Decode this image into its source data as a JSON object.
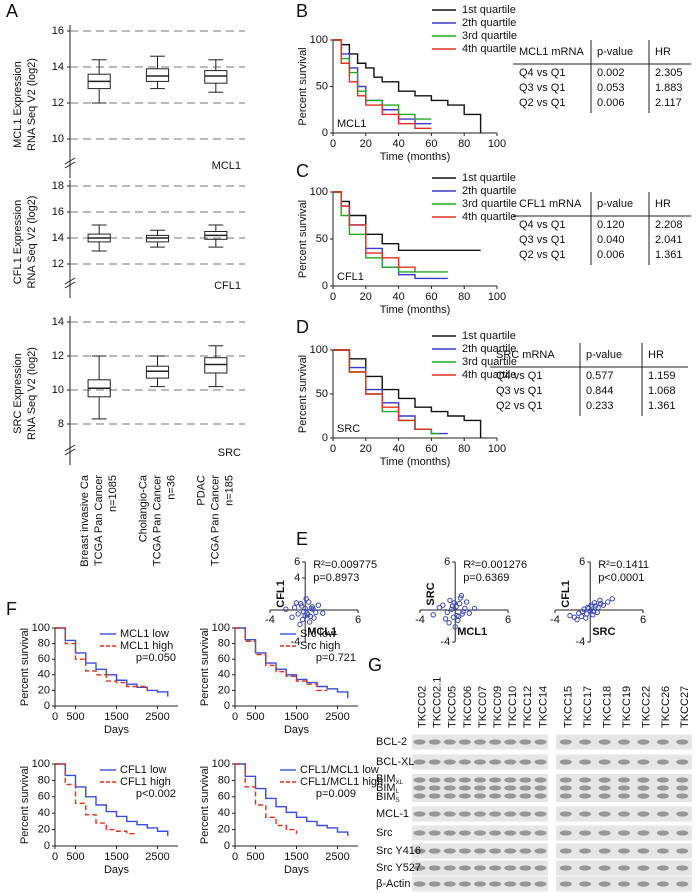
{
  "panel_letters": [
    "A",
    "B",
    "C",
    "D",
    "E",
    "F",
    "G"
  ],
  "chart_data": [
    {
      "type": "box",
      "ylabel": [
        "MCL1 Expression",
        "RNA Seq V2 (log2)"
      ],
      "label": "MCL1",
      "ylim": [
        10,
        16
      ],
      "yticks": [
        10,
        12,
        14,
        16
      ],
      "grid": "dashed",
      "boxes": [
        {
          "whislo": 12,
          "q1": 12.8,
          "med": 13.2,
          "q3": 13.6,
          "whishi": 14.4
        },
        {
          "whislo": 12.8,
          "q1": 13.2,
          "med": 13.5,
          "q3": 13.9,
          "whishi": 14.6
        },
        {
          "whislo": 12.6,
          "q1": 13.1,
          "med": 13.5,
          "q3": 13.8,
          "whishi": 14.4
        }
      ]
    },
    {
      "type": "box",
      "ylabel": [
        "CFL1 Expression",
        "RNA Seq V2 (log2)"
      ],
      "label": "CFL1",
      "ylim": [
        12,
        18
      ],
      "yticks": [
        12,
        14,
        16,
        18
      ],
      "grid": "dashed",
      "boxes": [
        {
          "whislo": 13,
          "q1": 13.7,
          "med": 14,
          "q3": 14.3,
          "whishi": 15
        },
        {
          "whislo": 13.3,
          "q1": 13.7,
          "med": 14,
          "q3": 14.2,
          "whishi": 14.6
        },
        {
          "whislo": 13.3,
          "q1": 13.9,
          "med": 14.2,
          "q3": 14.5,
          "whishi": 15
        }
      ]
    },
    {
      "type": "box",
      "ylabel": [
        "SRC Expression",
        "RNA Seq V2 (log2)"
      ],
      "label": "SRC",
      "ylim": [
        8,
        14
      ],
      "yticks": [
        8,
        10,
        12,
        14
      ],
      "grid": "dashed",
      "boxes": [
        {
          "whislo": 8.3,
          "q1": 9.6,
          "med": 10.1,
          "q3": 10.6,
          "whishi": 12
        },
        {
          "whislo": 10.2,
          "q1": 10.7,
          "med": 11.1,
          "q3": 11.4,
          "whishi": 12
        },
        {
          "whislo": 10.2,
          "q1": 11,
          "med": 11.5,
          "q3": 11.9,
          "whishi": 12.6
        }
      ],
      "category_lines": [
        [
          "Breast invasive Ca",
          "TCGA Pan Cancer",
          "n=1085"
        ],
        [
          "Cholangio-Ca",
          "TCGA Pan Cancer",
          "n=36"
        ],
        [
          "PDAC",
          "TCGA Pan Cancer",
          "n=185"
        ]
      ]
    },
    {
      "type": "step",
      "ylabel": "Percent survival",
      "xlabel": "Time (months)",
      "label": "MCL1",
      "xlim": [
        0,
        100
      ],
      "xticks": [
        0,
        20,
        40,
        60,
        80,
        100
      ],
      "ylim": [
        0,
        100
      ],
      "yticks": [
        0,
        50,
        100
      ],
      "series": [
        {
          "name": "1st quartile",
          "color": "#111111",
          "x": [
            0,
            5,
            10,
            15,
            20,
            25,
            30,
            40,
            50,
            60,
            70,
            80,
            90
          ],
          "values": [
            100,
            95,
            85,
            75,
            70,
            60,
            55,
            45,
            40,
            35,
            30,
            20,
            0
          ]
        },
        {
          "name": "2th quartile",
          "color": "#3a3acc",
          "x": [
            0,
            5,
            10,
            15,
            20,
            30,
            40,
            50,
            60
          ],
          "values": [
            100,
            85,
            70,
            50,
            35,
            25,
            15,
            10,
            10
          ]
        },
        {
          "name": "3rd quartile",
          "color": "#22aa22",
          "x": [
            0,
            5,
            10,
            15,
            20,
            30,
            40,
            50,
            60
          ],
          "values": [
            100,
            80,
            65,
            45,
            35,
            30,
            20,
            15,
            15
          ]
        },
        {
          "name": "4th quartile",
          "color": "#e03020",
          "x": [
            0,
            5,
            10,
            15,
            20,
            30,
            40,
            50,
            60
          ],
          "values": [
            100,
            75,
            55,
            40,
            30,
            20,
            10,
            5,
            5
          ]
        }
      ]
    },
    {
      "type": "step",
      "ylabel": "Percent survival",
      "xlabel": "Time (months)",
      "label": "CFL1",
      "xlim": [
        0,
        100
      ],
      "xticks": [
        0,
        20,
        40,
        60,
        80,
        100
      ],
      "ylim": [
        0,
        100
      ],
      "yticks": [
        0,
        50,
        100
      ],
      "series": [
        {
          "name": "1st quartile",
          "color": "#111111",
          "x": [
            0,
            5,
            10,
            20,
            30,
            40,
            60,
            80,
            90
          ],
          "values": [
            100,
            90,
            75,
            55,
            45,
            38,
            38,
            38,
            38
          ]
        },
        {
          "name": "2th quartile",
          "color": "#3a3acc",
          "x": [
            0,
            5,
            10,
            20,
            30,
            40,
            50,
            70
          ],
          "values": [
            100,
            85,
            65,
            40,
            20,
            12,
            8,
            8
          ]
        },
        {
          "name": "3rd quartile",
          "color": "#22aa22",
          "x": [
            0,
            5,
            10,
            20,
            30,
            40,
            70
          ],
          "values": [
            100,
            75,
            55,
            30,
            20,
            15,
            15
          ]
        },
        {
          "name": "4th quartile",
          "color": "#e03020",
          "x": [
            0,
            5,
            10,
            20,
            30,
            40,
            50
          ],
          "values": [
            100,
            85,
            65,
            35,
            30,
            20,
            15
          ]
        }
      ]
    },
    {
      "type": "step",
      "ylabel": "Percent survival",
      "xlabel": "Time (months)",
      "label": "SRC",
      "xlim": [
        0,
        100
      ],
      "xticks": [
        0,
        20,
        40,
        60,
        80,
        100
      ],
      "ylim": [
        0,
        100
      ],
      "yticks": [
        0,
        50,
        100
      ],
      "series": [
        {
          "name": "1st quartile",
          "color": "#111111",
          "x": [
            0,
            10,
            20,
            30,
            40,
            50,
            60,
            70,
            80,
            90
          ],
          "values": [
            100,
            90,
            70,
            55,
            45,
            35,
            30,
            25,
            20,
            0
          ]
        },
        {
          "name": "2th quartile",
          "color": "#3a3acc",
          "x": [
            0,
            10,
            20,
            30,
            40,
            50,
            60,
            70
          ],
          "values": [
            100,
            80,
            55,
            40,
            25,
            10,
            5,
            5
          ]
        },
        {
          "name": "3rd quartile",
          "color": "#22aa22",
          "x": [
            0,
            10,
            20,
            30,
            40,
            50,
            60,
            65
          ],
          "values": [
            100,
            75,
            50,
            30,
            20,
            10,
            5,
            5
          ]
        },
        {
          "name": "4th quartile",
          "color": "#e03020",
          "x": [
            0,
            10,
            20,
            30,
            40,
            50,
            60
          ],
          "values": [
            100,
            75,
            50,
            35,
            20,
            10,
            10
          ]
        }
      ]
    },
    {
      "type": "scatter",
      "xlabel": "MCL1",
      "ylabel": "CFL1",
      "annotations": [
        "R²=0.009775",
        "p=0.8973"
      ],
      "color": "#3a4bb8",
      "xlim": [
        -4,
        6
      ],
      "ylim": [
        -4,
        6
      ],
      "xticks": [
        -4,
        6
      ],
      "yticks": [
        -4,
        4,
        6
      ],
      "x": [
        -1.2,
        -0.8,
        -0.5,
        -0.3,
        0,
        0.2,
        0.4,
        0.6,
        0.9,
        1.2,
        1.5,
        -1.5,
        -0.6,
        0.1,
        0.3,
        0.8,
        -0.2,
        0.5,
        1.0,
        -1.0,
        0.0,
        0.7,
        -0.4,
        2.0,
        -2.2
      ],
      "values": [
        0.3,
        -0.5,
        0.8,
        -1.2,
        0.2,
        -0.4,
        1.0,
        -0.8,
        0.1,
        -0.3,
        0.6,
        -0.9,
        -1.8,
        1.4,
        -0.6,
        0.4,
        -0.2,
        -1.5,
        -1.0,
        0.9,
        -0.7,
        0.2,
        0.5,
        -0.4,
        0.1
      ]
    },
    {
      "type": "scatter",
      "xlabel": "MCL1",
      "ylabel": "SRC",
      "annotations": [
        "R²=0.001276",
        "p=0.6369"
      ],
      "color": "#3a4bb8",
      "xlim": [
        -4,
        6
      ],
      "ylim": [
        -4,
        6
      ],
      "xticks": [
        -4,
        6
      ],
      "yticks": [
        -4,
        6
      ],
      "x": [
        -1.4,
        -0.9,
        -0.6,
        -0.2,
        0.1,
        0.3,
        0.5,
        0.8,
        1.1,
        1.3,
        -1.1,
        -0.4,
        0.2,
        0.6,
        -0.7,
        0.9,
        -0.1,
        0.4,
        -1.8,
        1.6,
        0.0,
        -0.3,
        0.7,
        2.2,
        -2.5
      ],
      "values": [
        0.6,
        -0.3,
        1.2,
        -0.9,
        0.4,
        -1.3,
        0.8,
        -0.5,
        0.2,
        1.0,
        -1.1,
        0.1,
        -0.7,
        1.5,
        -1.6,
        -0.2,
        0.9,
        -0.8,
        0.3,
        -0.4,
        -2.1,
        0.5,
        1.8,
        0.2,
        -0.6
      ]
    },
    {
      "type": "scatter",
      "xlabel": "SRC",
      "ylabel": "CFL1",
      "annotations": [
        "R²=0.1411",
        "p<0.0001"
      ],
      "color": "#3a4bb8",
      "xlim": [
        -4,
        6
      ],
      "ylim": [
        -4,
        6
      ],
      "xticks": [
        -4,
        6
      ],
      "yticks": [
        -4,
        6
      ],
      "x": [
        -1.8,
        -1.3,
        -1.0,
        -0.7,
        -0.4,
        -0.2,
        0.0,
        0.2,
        0.4,
        0.6,
        0.9,
        1.2,
        1.5,
        2.0,
        -1.5,
        -0.9,
        -0.5,
        0.1,
        0.5,
        0.8,
        1.1,
        2.5,
        -0.3,
        0.3,
        -2.3
      ],
      "values": [
        -0.9,
        -0.4,
        -0.8,
        0.1,
        -0.5,
        0.2,
        -0.1,
        0.4,
        -0.2,
        0.5,
        0.3,
        0.8,
        0.6,
        1.0,
        -1.2,
        -0.2,
        -1.0,
        0.6,
        0.9,
        -0.3,
        1.2,
        1.4,
        0.3,
        -0.6,
        -0.7
      ]
    },
    {
      "type": "step",
      "ylabel": "Percent survival",
      "xlabel": "Days",
      "annotation": "p=0.050",
      "legend": "upper right",
      "xlim": [
        0,
        3000
      ],
      "xticks": [
        0,
        500,
        1500,
        2500
      ],
      "ylim": [
        0,
        100
      ],
      "yticks": [
        0,
        20,
        40,
        60,
        80,
        100
      ],
      "series": [
        {
          "name": "MCL1 low",
          "color": "#3b4fd6",
          "x": [
            0,
            250,
            500,
            750,
            1000,
            1250,
            1500,
            1750,
            2000,
            2250,
            2500,
            2750
          ],
          "values": [
            100,
            84,
            68,
            55,
            47,
            40,
            33,
            28,
            24,
            20,
            18,
            12
          ]
        },
        {
          "name": "MCL1 high",
          "color": "#e0301e",
          "line_style": "dashed",
          "x": [
            0,
            250,
            500,
            750,
            1000,
            1250,
            1500,
            1750,
            2000,
            2250
          ],
          "values": [
            100,
            80,
            60,
            45,
            40,
            32,
            30,
            25,
            25,
            20
          ]
        }
      ]
    },
    {
      "type": "step",
      "ylabel": "Percent survival",
      "xlabel": "Days",
      "annotation": "p=0.721",
      "legend": "upper right",
      "xlim": [
        0,
        3000
      ],
      "xticks": [
        0,
        500,
        1500,
        2500
      ],
      "ylim": [
        0,
        100
      ],
      "yticks": [
        0,
        20,
        40,
        60,
        80,
        100
      ],
      "series": [
        {
          "name": "Src low",
          "color": "#3b4fd6",
          "x": [
            0,
            250,
            500,
            750,
            1000,
            1250,
            1500,
            1750,
            2000,
            2250,
            2500,
            2750
          ],
          "values": [
            100,
            85,
            68,
            55,
            47,
            40,
            34,
            30,
            25,
            22,
            18,
            10
          ]
        },
        {
          "name": "Src high",
          "color": "#e0301e",
          "line_style": "dashed",
          "x": [
            0,
            250,
            500,
            750,
            1000,
            1250,
            1500,
            1750,
            2000,
            2250
          ],
          "values": [
            100,
            83,
            66,
            52,
            44,
            38,
            32,
            28,
            20,
            20
          ]
        }
      ]
    },
    {
      "type": "step",
      "ylabel": "Percent survival",
      "xlabel": "Days",
      "annotation": "p<0.002",
      "legend": "upper right",
      "xlim": [
        0,
        3000
      ],
      "xticks": [
        0,
        500,
        1500,
        2500
      ],
      "ylim": [
        0,
        100
      ],
      "yticks": [
        0,
        20,
        40,
        60,
        80,
        100
      ],
      "series": [
        {
          "name": "CFL1 low",
          "color": "#3b4fd6",
          "x": [
            0,
            250,
            500,
            750,
            1000,
            1250,
            1500,
            1750,
            2000,
            2250,
            2500,
            2750
          ],
          "values": [
            100,
            86,
            72,
            60,
            50,
            42,
            36,
            30,
            26,
            22,
            18,
            12
          ]
        },
        {
          "name": "CFL1 high",
          "color": "#e0301e",
          "line_style": "dashed",
          "x": [
            0,
            250,
            500,
            750,
            1000,
            1250,
            1500,
            1750,
            2000
          ],
          "values": [
            100,
            75,
            52,
            38,
            28,
            20,
            18,
            15,
            15
          ]
        }
      ]
    },
    {
      "type": "step",
      "ylabel": "Percent survival",
      "xlabel": "Days",
      "annotation": "p=0.009",
      "legend": "upper right",
      "xlim": [
        0,
        3000
      ],
      "xticks": [
        0,
        500,
        1500,
        2500
      ],
      "ylim": [
        0,
        100
      ],
      "yticks": [
        0,
        20,
        40,
        60,
        80,
        100
      ],
      "series": [
        {
          "name": "CFL1/MCL1 low",
          "color": "#3b4fd6",
          "x": [
            0,
            250,
            500,
            750,
            1000,
            1250,
            1500,
            1750,
            2000,
            2250,
            2500,
            2750
          ],
          "values": [
            100,
            85,
            70,
            58,
            48,
            41,
            35,
            30,
            25,
            22,
            17,
            12
          ]
        },
        {
          "name": "CFL1/MCL1 high",
          "color": "#e0301e",
          "line_style": "dashed",
          "x": [
            0,
            250,
            500,
            750,
            1000,
            1250,
            1500
          ],
          "values": [
            100,
            72,
            50,
            35,
            25,
            20,
            15
          ]
        }
      ]
    }
  ],
  "tables": [
    {
      "columns": [
        "MCL1 mRNA",
        "p-value",
        "HR"
      ],
      "rows": [
        [
          "Q4 vs Q1",
          "0.002",
          "2.305"
        ],
        [
          "Q3 vs Q1",
          "0.053",
          "1.883"
        ],
        [
          "Q2 vs Q1",
          "0.006",
          "2.117"
        ]
      ]
    },
    {
      "columns": [
        "CFL1 mRNA",
        "p-value",
        "HR"
      ],
      "rows": [
        [
          "Q4 vs Q1",
          "0.120",
          "2.208"
        ],
        [
          "Q3 vs Q1",
          "0.040",
          "2.041"
        ],
        [
          "Q2 vs Q1",
          "0.006",
          "1.361"
        ]
      ]
    },
    {
      "columns": [
        "SRC mRNA",
        "p-value",
        "HR"
      ],
      "rows": [
        [
          "Q4 vs Q1",
          "0.577",
          "1.159"
        ],
        [
          "Q3 vs Q1",
          "0.844",
          "1.068"
        ],
        [
          "Q2 vs Q1",
          "0.233",
          "1.361"
        ]
      ]
    }
  ],
  "blot": {
    "columns_left": [
      "TKCC02",
      "TKCC02.1",
      "TKCC05",
      "TKCC06",
      "TKCC07",
      "TKCC09",
      "TKCC10",
      "TKCC12",
      "TKCC14"
    ],
    "columns_right": [
      "TKCC15",
      "TKCC17",
      "TKCC18",
      "TKCC19",
      "TKCC22",
      "TKCC26",
      "TKCC27"
    ],
    "rows": [
      {
        "name": "BCL-2"
      },
      {
        "name": "BCL-XL"
      },
      {
        "name": "BIM",
        "subs": [
          "XL",
          "L",
          "S"
        ]
      },
      {
        "name": "MCL-1"
      },
      {
        "name": "Src"
      },
      {
        "name": "Src Y416"
      },
      {
        "name": "Src Y527"
      },
      {
        "name": "β-Actin"
      }
    ]
  }
}
